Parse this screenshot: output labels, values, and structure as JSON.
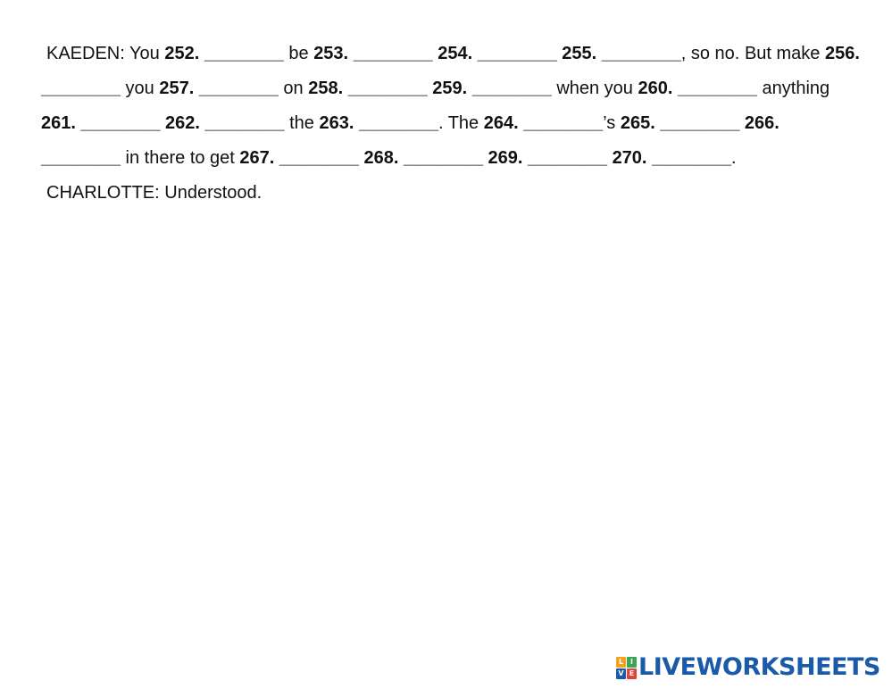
{
  "worksheet": {
    "kaeden_speaker": "KAEDEN:",
    "charlotte_speaker": "CHARLOTTE:",
    "charlotte_line": "Understood.",
    "blank": "________",
    "segments": {
      "s0": "You",
      "s1": "be",
      "s2": ", so no.",
      "s3": "But make",
      "s4": "you",
      "s5": "on",
      "s6": "when you",
      "s7": "anything",
      "s8": "the",
      "s9": ". The",
      "s10": "’s",
      "s11": "in there to get",
      "s12": "."
    },
    "numbers": {
      "n252": "252.",
      "n253": "253.",
      "n254": "254.",
      "n255": "255.",
      "n256": "256.",
      "n257": "257.",
      "n258": "258.",
      "n259": "259.",
      "n260": "260.",
      "n261": "261.",
      "n262": "262.",
      "n263": "263.",
      "n264": "264.",
      "n265": "265.",
      "n266": "266.",
      "n267": "267.",
      "n268": "268.",
      "n269": "269.",
      "n270": "270."
    }
  },
  "branding": {
    "logo_text": "LIVEWORKSHEETS",
    "logo_mark_letters": [
      "L",
      "I",
      "V",
      "E"
    ],
    "logo_mark_colors": [
      "#f2a31b",
      "#3aa655",
      "#1a5aa8",
      "#e0413a"
    ],
    "logo_color": "#1a5aa8"
  }
}
